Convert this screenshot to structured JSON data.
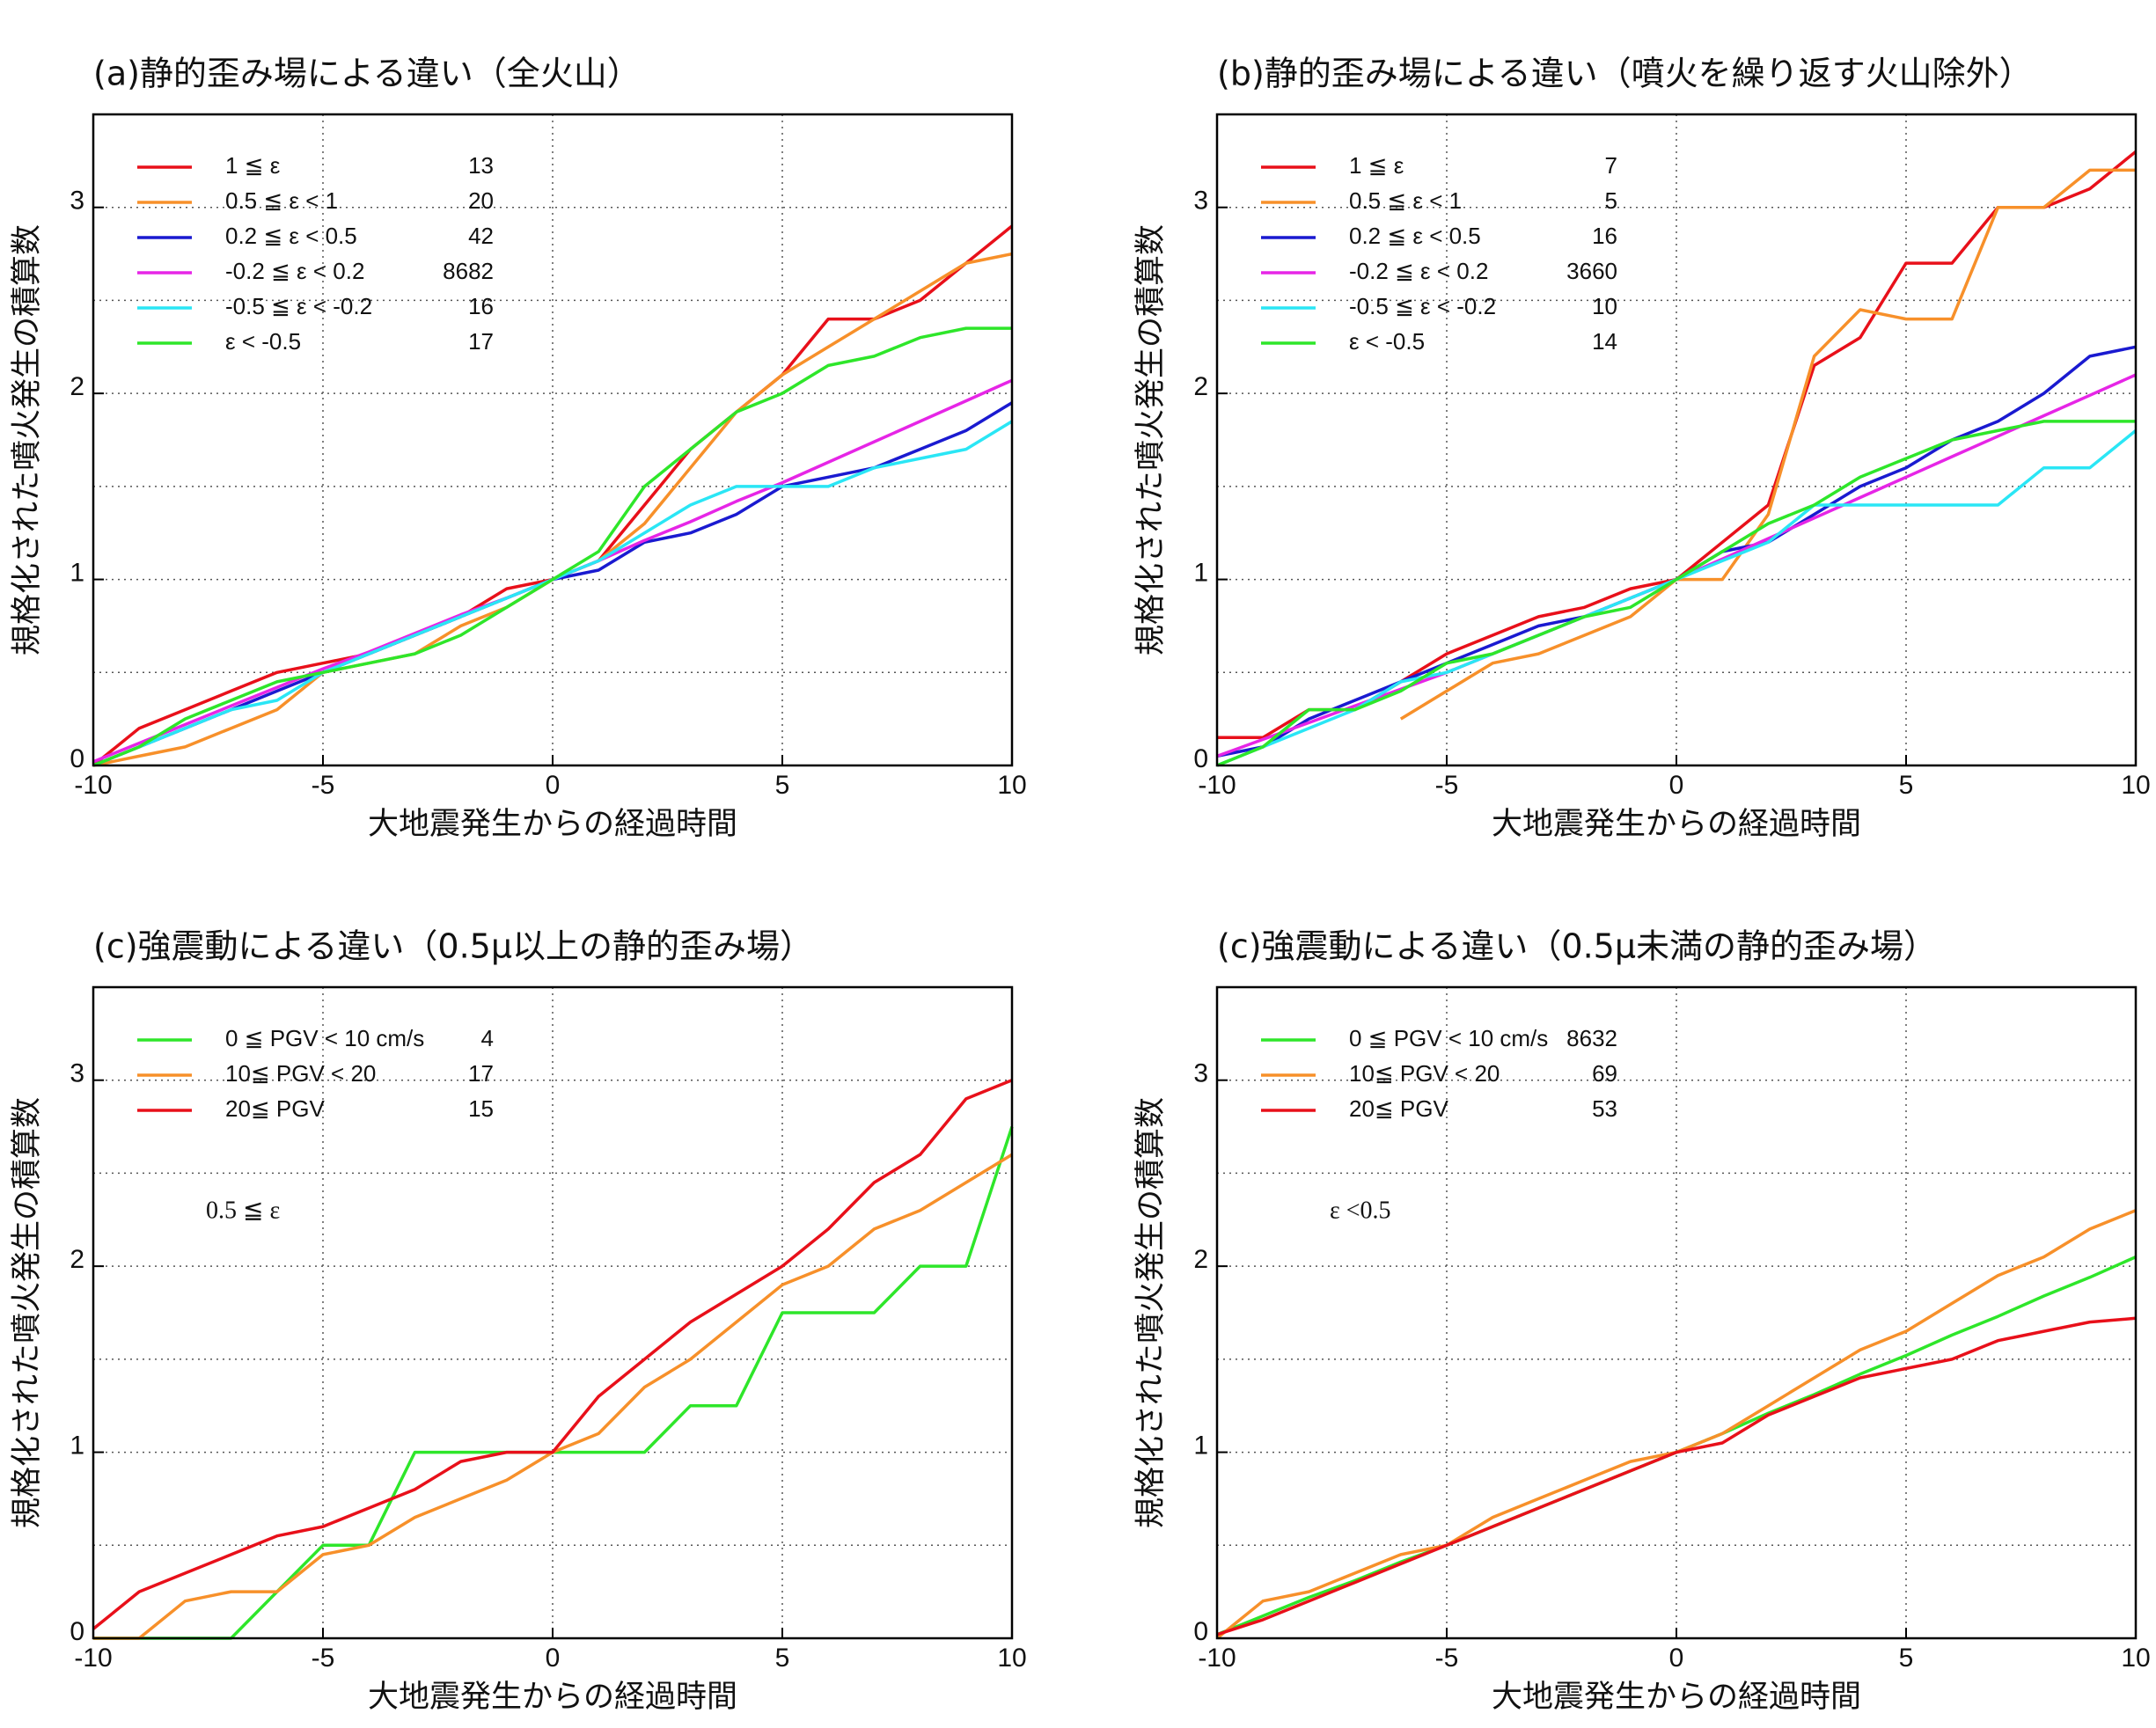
{
  "chart_data": [
    {
      "type": "line",
      "title": "(a)静的歪み場による違い（全火山）",
      "xlabel": "大地震発生からの経過時間",
      "ylabel": "規格化された噴火発生の積算数",
      "xlim": [
        -10,
        10
      ],
      "ylim": [
        0,
        3.5
      ],
      "xticks": [
        -10,
        -5,
        0,
        5,
        10
      ],
      "yticks": [
        0,
        1,
        2,
        3
      ],
      "ygrid": [
        0.5,
        1,
        1.5,
        2,
        2.5,
        3
      ],
      "grid": true,
      "legend": "upper left",
      "x": [
        -10,
        -9,
        -8,
        -7,
        -6,
        -5,
        -4,
        -3,
        -2,
        -1,
        0,
        1,
        2,
        3,
        4,
        5,
        6,
        7,
        8,
        9,
        10
      ],
      "series": [
        {
          "name": "1 ≦ ε",
          "count": 13,
          "color": "#e8101a",
          "values": [
            0,
            0.2,
            0.3,
            0.4,
            0.5,
            0.55,
            0.6,
            0.7,
            0.8,
            0.95,
            1.0,
            1.1,
            1.4,
            1.7,
            1.9,
            2.1,
            2.4,
            2.4,
            2.5,
            2.7,
            2.9
          ]
        },
        {
          "name": "0.5 ≦ ε < 1",
          "count": 20,
          "color": "#f7902a",
          "values": [
            0,
            0.05,
            0.1,
            0.2,
            0.3,
            0.5,
            0.55,
            0.6,
            0.75,
            0.85,
            1.0,
            1.1,
            1.3,
            1.6,
            1.9,
            2.1,
            2.25,
            2.4,
            2.55,
            2.7,
            2.75
          ]
        },
        {
          "name": "0.2 ≦ ε < 0.5",
          "count": 42,
          "color": "#1a1ad0",
          "values": [
            0,
            0.1,
            0.2,
            0.3,
            0.4,
            0.5,
            0.6,
            0.7,
            0.8,
            0.9,
            1.0,
            1.05,
            1.2,
            1.25,
            1.35,
            1.5,
            1.55,
            1.6,
            1.7,
            1.8,
            1.95
          ]
        },
        {
          "name": "-0.2 ≦ ε < 0.2",
          "count": 8682,
          "color": "#e625e6",
          "values": [
            0.02,
            0.12,
            0.22,
            0.32,
            0.42,
            0.52,
            0.61,
            0.71,
            0.81,
            0.9,
            1.0,
            1.1,
            1.21,
            1.31,
            1.42,
            1.52,
            1.63,
            1.74,
            1.85,
            1.96,
            2.07
          ]
        },
        {
          "name": "-0.5 ≦ ε < -0.2",
          "count": 16,
          "color": "#2ae6f5",
          "values": [
            0,
            0.1,
            0.2,
            0.3,
            0.35,
            0.5,
            0.6,
            0.7,
            0.8,
            0.9,
            1.0,
            1.1,
            1.25,
            1.4,
            1.5,
            1.5,
            1.5,
            1.6,
            1.65,
            1.7,
            1.85
          ]
        },
        {
          "name": "ε < -0.5",
          "count": 17,
          "color": "#2ee62a",
          "values": [
            0,
            0.1,
            0.25,
            0.35,
            0.45,
            0.5,
            0.55,
            0.6,
            0.7,
            0.85,
            1.0,
            1.15,
            1.5,
            1.7,
            1.9,
            2.0,
            2.15,
            2.2,
            2.3,
            2.35,
            2.35
          ]
        }
      ]
    },
    {
      "type": "line",
      "title": "(b)静的歪み場による違い（噴火を繰り返す火山除外）",
      "xlabel": "大地震発生からの経過時間",
      "ylabel": "規格化された噴火発生の積算数",
      "xlim": [
        -10,
        10
      ],
      "ylim": [
        0,
        3.5
      ],
      "xticks": [
        -10,
        -5,
        0,
        5,
        10
      ],
      "yticks": [
        0,
        1,
        2,
        3
      ],
      "ygrid": [
        0.5,
        1,
        1.5,
        2,
        2.5,
        3
      ],
      "grid": true,
      "legend": "upper left",
      "x": [
        -10,
        -9,
        -8,
        -7,
        -6,
        -5,
        -4,
        -3,
        -2,
        -1,
        0,
        1,
        2,
        3,
        4,
        5,
        6,
        7,
        8,
        9,
        10
      ],
      "series": [
        {
          "name": "1 ≦ ε",
          "count": 7,
          "color": "#e8101a",
          "values": [
            0.15,
            0.15,
            0.3,
            0.3,
            0.45,
            0.6,
            0.7,
            0.8,
            0.85,
            0.95,
            1.0,
            1.2,
            1.4,
            2.15,
            2.3,
            2.7,
            2.7,
            3.0,
            3.0,
            3.1,
            3.3
          ]
        },
        {
          "name": "0.5 ≦ ε < 1",
          "count": 5,
          "color": "#f7902a",
          "values": [
            null,
            null,
            null,
            null,
            0.25,
            0.4,
            0.55,
            0.6,
            0.7,
            0.8,
            1.0,
            1.0,
            1.35,
            2.2,
            2.45,
            2.4,
            2.4,
            3.0,
            3.0,
            3.2,
            3.2
          ]
        },
        {
          "name": "0.2 ≦ ε < 0.5",
          "count": 16,
          "color": "#1a1ad0",
          "values": [
            0.05,
            0.1,
            0.25,
            0.35,
            0.45,
            0.55,
            0.65,
            0.75,
            0.8,
            0.9,
            1.0,
            1.15,
            1.2,
            1.35,
            1.5,
            1.6,
            1.75,
            1.85,
            2.0,
            2.2,
            2.25
          ]
        },
        {
          "name": "-0.2 ≦ ε < 0.2",
          "count": 3660,
          "color": "#e625e6",
          "values": [
            0.05,
            0.14,
            0.23,
            0.32,
            0.41,
            0.5,
            0.6,
            0.7,
            0.8,
            0.9,
            1.0,
            1.11,
            1.22,
            1.33,
            1.44,
            1.55,
            1.66,
            1.77,
            1.88,
            1.99,
            2.1
          ]
        },
        {
          "name": "-0.5 ≦ ε < -0.2",
          "count": 10,
          "color": "#2ae6f5",
          "values": [
            0,
            0.1,
            0.2,
            0.3,
            0.45,
            0.5,
            0.6,
            0.7,
            0.8,
            0.9,
            1.0,
            1.1,
            1.2,
            1.4,
            1.4,
            1.4,
            1.4,
            1.4,
            1.6,
            1.6,
            1.8
          ]
        },
        {
          "name": "ε < -0.5",
          "count": 14,
          "color": "#2ee62a",
          "values": [
            0,
            0.1,
            0.3,
            0.3,
            0.4,
            0.55,
            0.6,
            0.7,
            0.8,
            0.85,
            1.0,
            1.15,
            1.3,
            1.4,
            1.55,
            1.65,
            1.75,
            1.8,
            1.85,
            1.85,
            1.85
          ]
        }
      ]
    },
    {
      "type": "line",
      "title": "(c)強震動による違い（0.5μ以上の静的歪み場）",
      "xlabel": "大地震発生からの経過時間",
      "ylabel": "規格化された噴火発生の積算数",
      "xlim": [
        -10,
        10
      ],
      "ylim": [
        0,
        3.5
      ],
      "xticks": [
        -10,
        -5,
        0,
        5,
        10
      ],
      "yticks": [
        0,
        1,
        2,
        3
      ],
      "ygrid": [
        0.5,
        1,
        1.5,
        2,
        2.5,
        3
      ],
      "grid": true,
      "legend": "upper left",
      "annotation": "0.5 ≦ ε",
      "x": [
        -10,
        -9,
        -8,
        -7,
        -6,
        -5,
        -4,
        -3,
        -2,
        -1,
        0,
        1,
        2,
        3,
        4,
        5,
        6,
        7,
        8,
        9,
        10
      ],
      "series": [
        {
          "name": "0 ≦ PGV < 10 cm/s",
          "count": 4,
          "color": "#2ee62a",
          "values": [
            0,
            0,
            0,
            0,
            0.25,
            0.5,
            0.5,
            1.0,
            1.0,
            1.0,
            1.0,
            1.0,
            1.0,
            1.25,
            1.25,
            1.75,
            1.75,
            1.75,
            2.0,
            2.0,
            2.75
          ]
        },
        {
          "name": "10≦ PGV < 20",
          "count": 17,
          "color": "#f7902a",
          "values": [
            0,
            0,
            0.2,
            0.25,
            0.25,
            0.45,
            0.5,
            0.65,
            0.75,
            0.85,
            1.0,
            1.1,
            1.35,
            1.5,
            1.7,
            1.9,
            2.0,
            2.2,
            2.3,
            2.45,
            2.6
          ]
        },
        {
          "name": "20≦ PGV",
          "count": 15,
          "color": "#e8101a",
          "values": [
            0.05,
            0.25,
            0.35,
            0.45,
            0.55,
            0.6,
            0.7,
            0.8,
            0.95,
            1.0,
            1.0,
            1.3,
            1.5,
            1.7,
            1.85,
            2.0,
            2.2,
            2.45,
            2.6,
            2.9,
            3.0
          ]
        }
      ]
    },
    {
      "type": "line",
      "title": "(c)強震動による違い（0.5μ未満の静的歪み場）",
      "xlabel": "大地震発生からの経過時間",
      "ylabel": "規格化された噴火発生の積算数",
      "xlim": [
        -10,
        10
      ],
      "ylim": [
        0,
        3.5
      ],
      "xticks": [
        -10,
        -5,
        0,
        5,
        10
      ],
      "yticks": [
        0,
        1,
        2,
        3
      ],
      "ygrid": [
        0.5,
        1,
        1.5,
        2,
        2.5,
        3
      ],
      "grid": true,
      "legend": "upper left",
      "annotation": "ε <0.5",
      "x": [
        -10,
        -9,
        -8,
        -7,
        -6,
        -5,
        -4,
        -3,
        -2,
        -1,
        0,
        1,
        2,
        3,
        4,
        5,
        6,
        7,
        8,
        9,
        10
      ],
      "series": [
        {
          "name": "0 ≦ PGV < 10 cm/s",
          "count": 8632,
          "color": "#2ee62a",
          "values": [
            0.02,
            0.12,
            0.22,
            0.31,
            0.41,
            0.5,
            0.6,
            0.7,
            0.8,
            0.9,
            1.0,
            1.1,
            1.21,
            1.31,
            1.42,
            1.52,
            1.63,
            1.73,
            1.84,
            1.94,
            2.05
          ]
        },
        {
          "name": "10≦ PGV < 20",
          "count": 69,
          "color": "#f7902a",
          "values": [
            0,
            0.2,
            0.25,
            0.35,
            0.45,
            0.5,
            0.65,
            0.75,
            0.85,
            0.95,
            1.0,
            1.1,
            1.25,
            1.4,
            1.55,
            1.65,
            1.8,
            1.95,
            2.05,
            2.2,
            2.3
          ]
        },
        {
          "name": "20≦ PGV",
          "count": 53,
          "color": "#e8101a",
          "values": [
            0.02,
            0.1,
            0.2,
            0.3,
            0.4,
            0.5,
            0.6,
            0.7,
            0.8,
            0.9,
            1.0,
            1.05,
            1.2,
            1.3,
            1.4,
            1.45,
            1.5,
            1.6,
            1.65,
            1.7,
            1.72
          ]
        }
      ]
    }
  ]
}
